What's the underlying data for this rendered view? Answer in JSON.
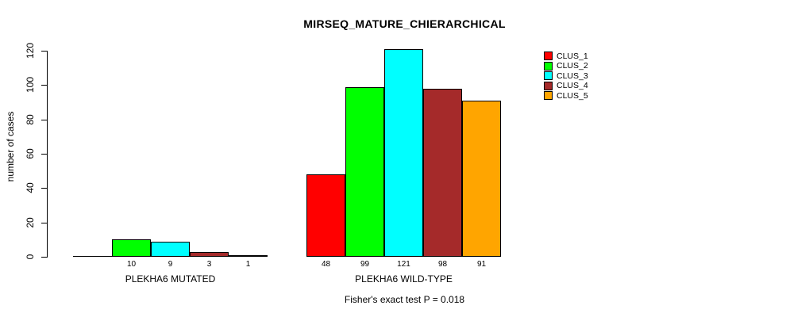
{
  "title": "MIRSEQ_MATURE_CHIERARCHICAL",
  "y_axis": {
    "label": "number of cases",
    "ticks": [
      "0",
      "20",
      "40",
      "60",
      "80",
      "100",
      "120"
    ]
  },
  "footnote": "Fisher's exact test P = 0.018",
  "legend": {
    "position": "right",
    "entries": [
      {
        "label": "CLUS_1",
        "color": "#FF0000"
      },
      {
        "label": "CLUS_2",
        "color": "#00FF00"
      },
      {
        "label": "CLUS_3",
        "color": "#00FFFF"
      },
      {
        "label": "CLUS_4",
        "color": "#A52A2A"
      },
      {
        "label": "CLUS_5",
        "color": "#FFA500"
      }
    ]
  },
  "chart_data": {
    "type": "bar",
    "title": "MIRSEQ_MATURE_CHIERARCHICAL",
    "xlabel": "",
    "ylabel": "number of cases",
    "ylim": [
      0,
      120
    ],
    "yticks": [
      0,
      20,
      40,
      60,
      80,
      100,
      120
    ],
    "grid": false,
    "legend_position": "right",
    "categories": [
      "PLEKHA6 MUTATED",
      "PLEKHA6 WILD-TYPE"
    ],
    "series": [
      {
        "name": "CLUS_1",
        "color": "#FF0000",
        "values": [
          0,
          48
        ]
      },
      {
        "name": "CLUS_2",
        "color": "#00FF00",
        "values": [
          10,
          99
        ]
      },
      {
        "name": "CLUS_3",
        "color": "#00FFFF",
        "values": [
          9,
          121
        ]
      },
      {
        "name": "CLUS_4",
        "color": "#A52A2A",
        "values": [
          3,
          98
        ]
      },
      {
        "name": "CLUS_5",
        "color": "#FFA500",
        "values": [
          1,
          91
        ]
      }
    ],
    "bar_value_labels": [
      [
        "",
        "10",
        "9",
        "3",
        "1"
      ],
      [
        "48",
        "99",
        "121",
        "98",
        "91"
      ]
    ],
    "annotation": "Fisher's exact test P = 0.018"
  }
}
